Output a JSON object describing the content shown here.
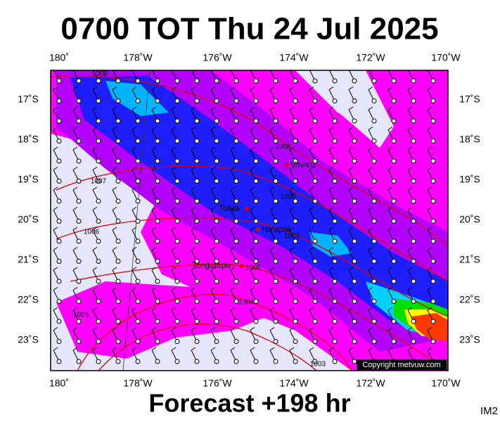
{
  "header": {
    "title": "0700 TOT Thu 24 Jul 2025"
  },
  "footer": {
    "forecast": "Forecast +198 hr",
    "image_id": "IM2"
  },
  "axes": {
    "longitudes": [
      "180˚",
      "178˚W",
      "176˚W",
      "174˚W",
      "172˚W",
      "170˚W"
    ],
    "latitudes": [
      "17˚S",
      "18˚S",
      "19˚S",
      "20˚S",
      "21˚S",
      "22˚S",
      "23˚S"
    ]
  },
  "places": [
    "Vava'u",
    "Tofua",
    "Ha'apai",
    "Tongatapu"
  ],
  "isobar_labels": [
    "1008",
    "1008",
    "1007",
    "1007",
    "1006",
    "1006",
    "1005",
    "1005",
    "1004",
    "1003"
  ],
  "copyright": "Copyright metvuw.com"
}
